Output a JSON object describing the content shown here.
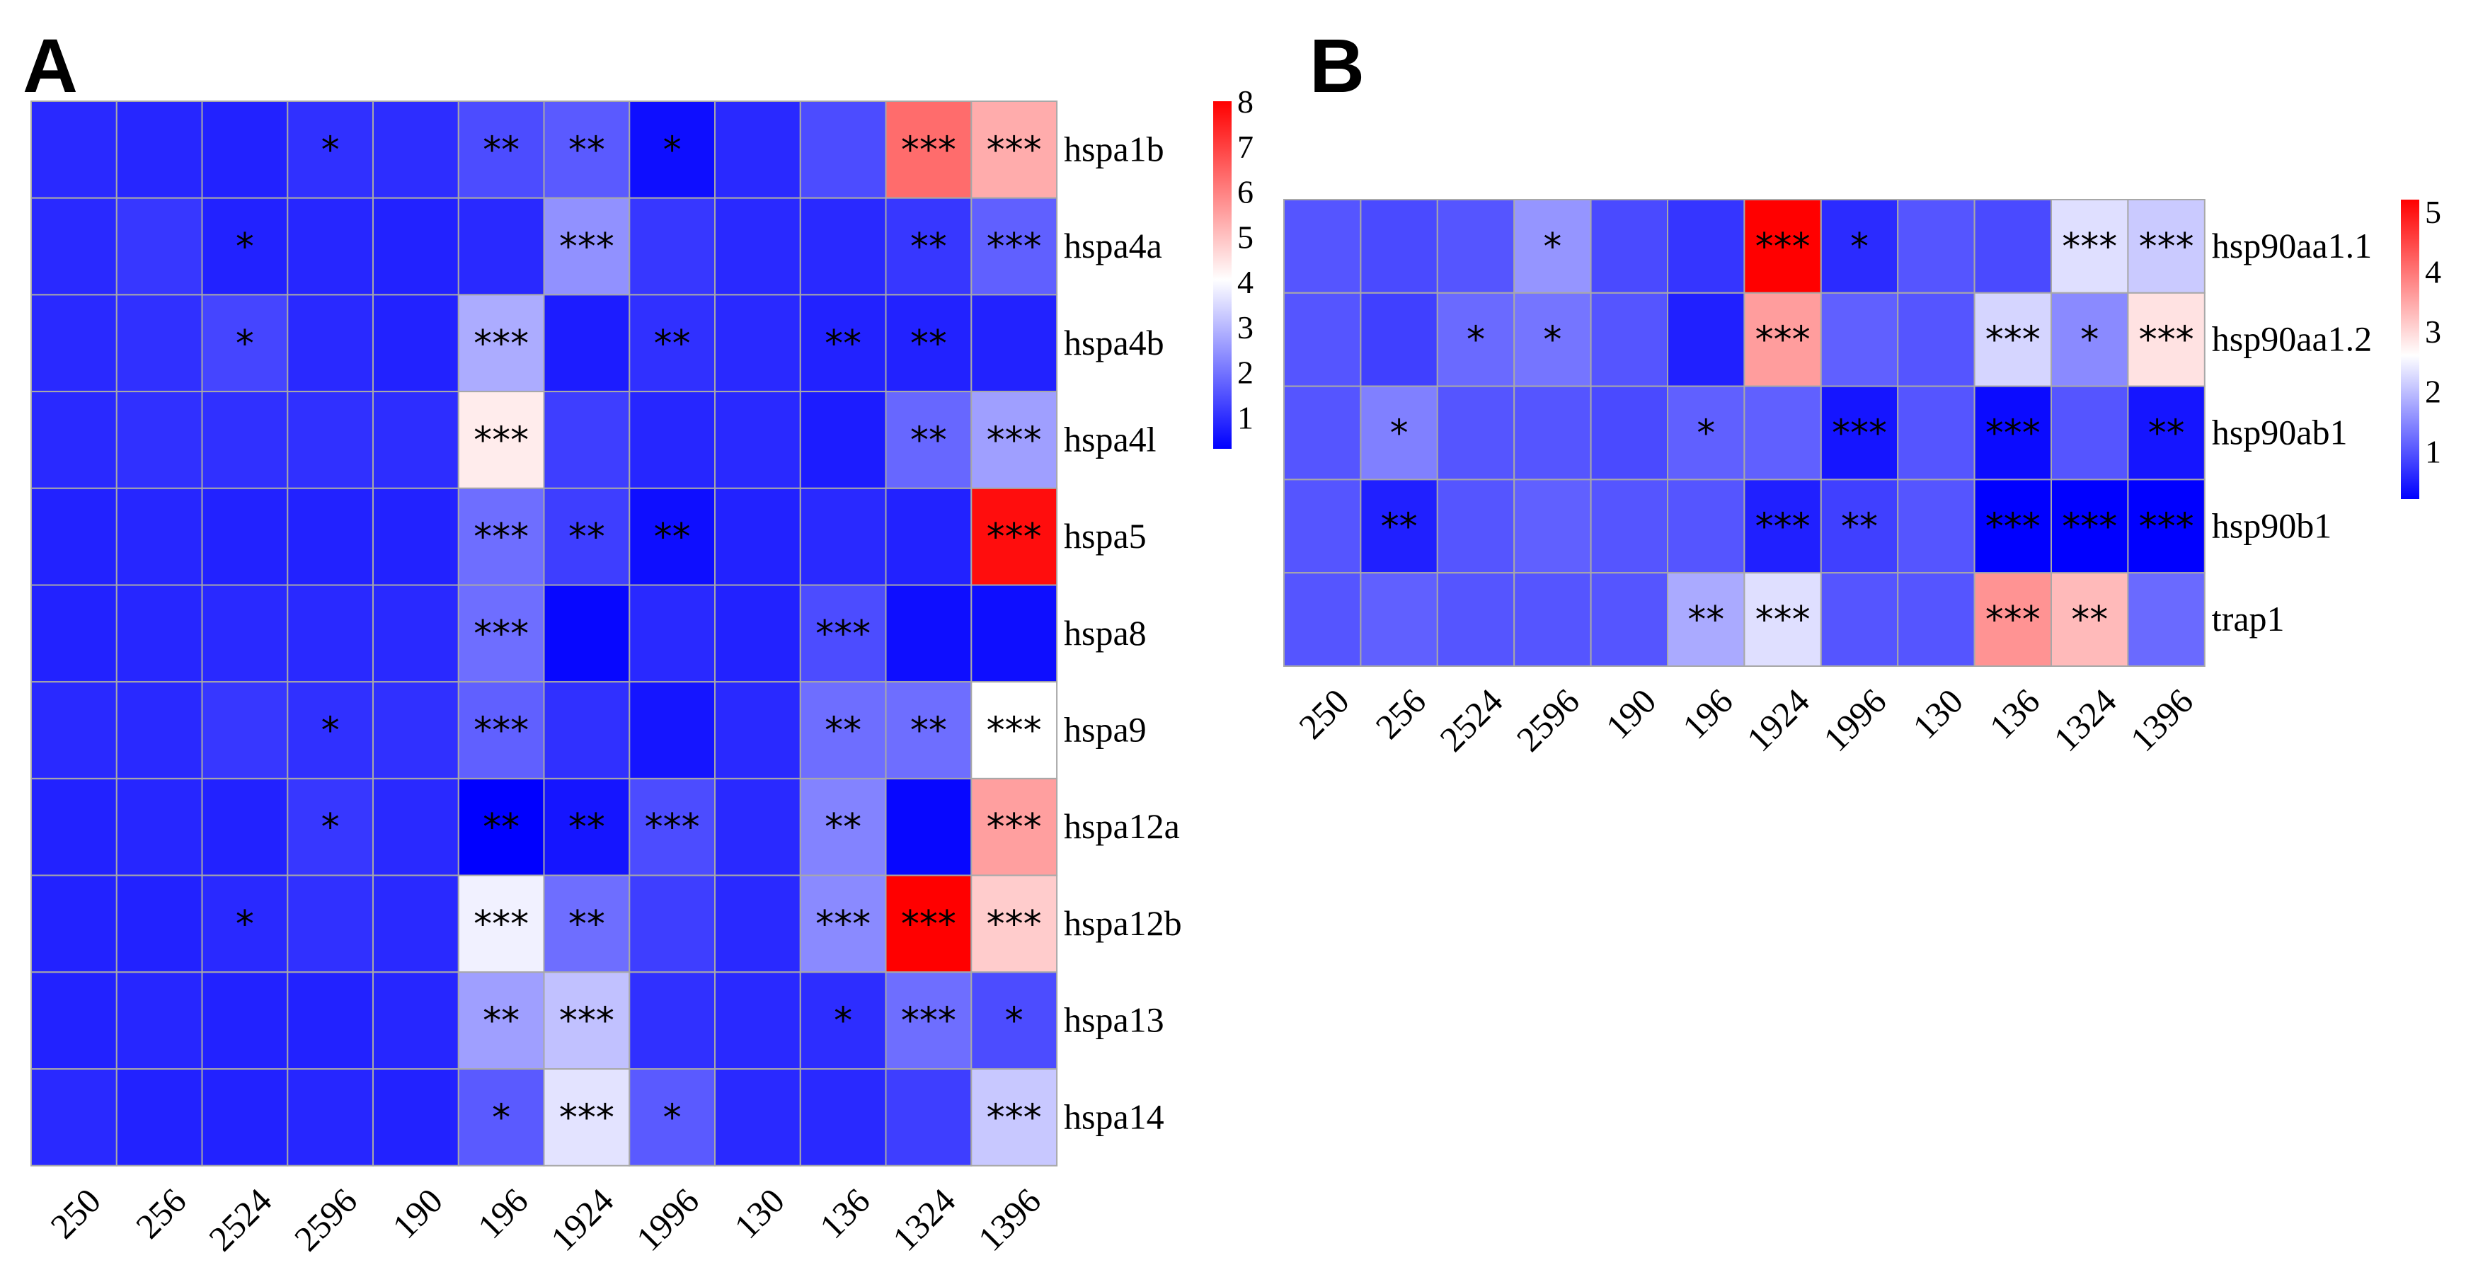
{
  "colors": {
    "low": "#0000ff",
    "mid": "#ffffff",
    "high": "#ff0000",
    "grid": "#a8a8a8"
  },
  "chart_data": [
    {
      "type": "heatmap",
      "panel": "A",
      "title": "",
      "columns": [
        "250",
        "256",
        "2524",
        "2596",
        "190",
        "196",
        "1924",
        "1996",
        "130",
        "136",
        "1324",
        "1396"
      ],
      "rows": [
        "hspa1b",
        "hspa4a",
        "hspa4b",
        "hspa4l",
        "hspa5",
        "hspa8",
        "hspa9",
        "hspa12a",
        "hspa12b",
        "hspa13",
        "hspa14"
      ],
      "values": [
        [
          0.9,
          0.85,
          0.8,
          1.0,
          0.95,
          1.4,
          1.6,
          0.5,
          0.9,
          1.4,
          6.3,
          5.3
        ],
        [
          0.9,
          1.1,
          0.8,
          0.85,
          0.8,
          0.9,
          2.4,
          1.1,
          0.9,
          0.9,
          1.1,
          1.7
        ],
        [
          0.9,
          1.0,
          1.3,
          0.9,
          0.8,
          2.8,
          0.7,
          1.0,
          0.9,
          0.8,
          0.8,
          0.8
        ],
        [
          0.9,
          1.0,
          1.0,
          1.0,
          0.95,
          4.3,
          1.2,
          0.85,
          0.9,
          0.7,
          1.8,
          2.6
        ],
        [
          0.8,
          0.85,
          0.8,
          0.8,
          0.8,
          1.9,
          1.2,
          0.5,
          0.8,
          0.9,
          0.8,
          7.8
        ],
        [
          0.8,
          0.85,
          0.9,
          0.9,
          0.9,
          1.9,
          0.4,
          0.9,
          0.8,
          1.4,
          0.5,
          0.5
        ],
        [
          0.9,
          0.9,
          1.1,
          1.0,
          1.0,
          1.7,
          1.0,
          0.6,
          0.9,
          1.9,
          1.9,
          4.0
        ],
        [
          0.8,
          0.85,
          0.8,
          1.1,
          0.9,
          0.3,
          0.6,
          1.4,
          0.9,
          2.2,
          0.4,
          5.5
        ],
        [
          0.8,
          0.8,
          0.9,
          1.0,
          0.9,
          3.8,
          1.9,
          1.2,
          0.9,
          2.3,
          8.0,
          4.8
        ],
        [
          0.8,
          0.85,
          0.8,
          0.8,
          0.85,
          2.6,
          3.1,
          1.0,
          0.9,
          0.95,
          1.9,
          1.4
        ],
        [
          0.9,
          0.8,
          0.8,
          0.85,
          0.8,
          1.6,
          3.6,
          1.6,
          0.9,
          0.9,
          1.2,
          3.2
        ]
      ],
      "significance": [
        [
          "",
          "",
          "",
          "*",
          "",
          "**",
          "**",
          "*",
          "",
          "",
          "***",
          "***"
        ],
        [
          "",
          "",
          "*",
          "",
          "",
          "",
          "***",
          "",
          "",
          "",
          "**",
          "***"
        ],
        [
          "",
          "",
          "*",
          "",
          "",
          "***",
          "",
          "**",
          "",
          "**",
          "**",
          ""
        ],
        [
          "",
          "",
          "",
          "",
          "",
          "***",
          "",
          "",
          "",
          "",
          "**",
          "***"
        ],
        [
          "",
          "",
          "",
          "",
          "",
          "***",
          "**",
          "**",
          "",
          "",
          "",
          "***"
        ],
        [
          "",
          "",
          "",
          "",
          "",
          "***",
          "",
          "",
          "",
          "***",
          "",
          ""
        ],
        [
          "",
          "",
          "",
          "*",
          "",
          "***",
          "",
          "",
          "",
          "**",
          "**",
          "***"
        ],
        [
          "",
          "",
          "",
          "*",
          "",
          "**",
          "**",
          "***",
          "",
          "**",
          "",
          "***"
        ],
        [
          "",
          "",
          "*",
          "",
          "",
          "***",
          "**",
          "",
          "",
          "***",
          "***",
          "***"
        ],
        [
          "",
          "",
          "",
          "",
          "",
          "**",
          "***",
          "",
          "",
          "*",
          "***",
          "*"
        ],
        [
          "",
          "",
          "",
          "",
          "",
          "*",
          "***",
          "*",
          "",
          "",
          "",
          "***"
        ]
      ],
      "scale": {
        "min": 0.3,
        "mid": 4,
        "max": 8,
        "ticks": [
          "1",
          "2",
          "3",
          "4",
          "5",
          "6",
          "7",
          "8"
        ]
      }
    },
    {
      "type": "heatmap",
      "panel": "B",
      "title": "",
      "columns": [
        "250",
        "256",
        "2524",
        "2596",
        "190",
        "196",
        "1924",
        "1996",
        "130",
        "136",
        "1324",
        "1396"
      ],
      "rows": [
        "hsp90aa1.1",
        "hsp90aa1.2",
        "hsp90ab1",
        "hsp90b1",
        "trap1"
      ],
      "values": [
        [
          1.0,
          0.9,
          1.0,
          1.6,
          0.9,
          0.7,
          5.2,
          0.6,
          1.0,
          0.9,
          2.3,
          2.1
        ],
        [
          1.0,
          0.8,
          1.2,
          1.3,
          1.0,
          0.5,
          3.6,
          1.1,
          1.0,
          2.2,
          1.5,
          2.9
        ],
        [
          1.0,
          1.4,
          1.0,
          1.0,
          0.9,
          1.1,
          1.1,
          0.4,
          1.0,
          0.3,
          1.0,
          0.4
        ],
        [
          1.0,
          0.5,
          1.0,
          1.1,
          1.0,
          1.0,
          0.5,
          0.8,
          1.0,
          0.2,
          0.2,
          0.2
        ],
        [
          1.0,
          1.1,
          1.0,
          1.0,
          1.0,
          1.8,
          2.3,
          1.0,
          1.0,
          3.7,
          3.3,
          1.2
        ]
      ],
      "significance": [
        [
          "",
          "",
          "",
          "*",
          "",
          "",
          "***",
          "*",
          "",
          "",
          "***",
          "***"
        ],
        [
          "",
          "",
          "*",
          "*",
          "",
          "",
          "***",
          "",
          "",
          "***",
          "*",
          "***"
        ],
        [
          "",
          "*",
          "",
          "",
          "",
          "*",
          "",
          "***",
          "",
          "***",
          "",
          "**"
        ],
        [
          "",
          "**",
          "",
          "",
          "",
          "",
          "***",
          "**",
          "",
          "***",
          "***",
          "***"
        ],
        [
          "",
          "",
          "",
          "",
          "",
          "**",
          "***",
          "",
          "",
          "***",
          "**",
          ""
        ]
      ],
      "scale": {
        "min": 0.2,
        "mid": 2.6,
        "max": 5.2,
        "ticks": [
          "1",
          "2",
          "3",
          "4",
          "5"
        ]
      }
    }
  ]
}
